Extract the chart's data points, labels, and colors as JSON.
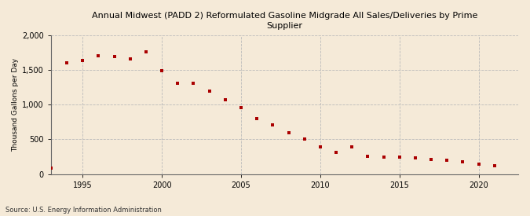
{
  "title": "Annual Midwest (PADD 2) Reformulated Gasoline Midgrade All Sales/Deliveries by Prime\nSupplier",
  "ylabel": "Thousand Gallons per Day",
  "source": "Source: U.S. Energy Information Administration",
  "background_color": "#f5ead8",
  "plot_bg_color": "#f5ead8",
  "marker_color": "#aa0000",
  "years": [
    1993,
    1994,
    1995,
    1996,
    1997,
    1998,
    1999,
    2000,
    2001,
    2002,
    2003,
    2004,
    2005,
    2006,
    2007,
    2008,
    2009,
    2010,
    2011,
    2012,
    2013,
    2014,
    2015,
    2016,
    2017,
    2018,
    2019,
    2020,
    2021
  ],
  "values": [
    90,
    1600,
    1630,
    1700,
    1690,
    1660,
    1760,
    1490,
    1310,
    1310,
    1190,
    1070,
    960,
    800,
    710,
    590,
    510,
    390,
    310,
    390,
    260,
    250,
    240,
    230,
    210,
    200,
    175,
    145,
    120
  ],
  "ylim": [
    0,
    2000
  ],
  "yticks": [
    0,
    500,
    1000,
    1500,
    2000
  ],
  "xlim": [
    1993.0,
    2022.5
  ],
  "xticks": [
    1995,
    2000,
    2005,
    2010,
    2015,
    2020
  ]
}
